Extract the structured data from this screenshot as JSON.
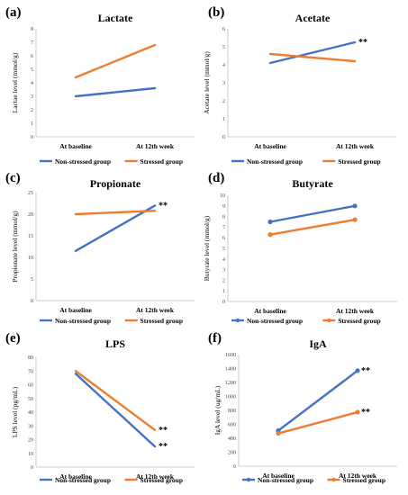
{
  "colors": {
    "non_stressed": "#4472C4",
    "stressed": "#ED7D31"
  },
  "chart_data": [
    {
      "type": "line",
      "panel_label": "(a)",
      "title": "Lactate",
      "ylabel": "Lactae level (mmol/g)",
      "yticks": [
        "0",
        "1",
        "2",
        "3",
        "4",
        "5",
        "6",
        "7",
        "8"
      ],
      "ylim": [
        0,
        8
      ],
      "categories": [
        "At baseline",
        "At 12th week"
      ],
      "markers": false,
      "series": [
        {
          "name": "Non-stressed group",
          "values": [
            3.0,
            3.6
          ],
          "annotation": ""
        },
        {
          "name": "Stressed group",
          "values": [
            4.4,
            6.8
          ],
          "annotation": ""
        }
      ]
    },
    {
      "type": "line",
      "panel_label": "(b)",
      "title": "Acetate",
      "ylabel": "Acetate level (mmol/g)",
      "yticks": [
        "0",
        "1",
        "2",
        "3",
        "4",
        "5",
        "6"
      ],
      "ylim": [
        0,
        6
      ],
      "categories": [
        "At baseline",
        "At 12th week"
      ],
      "markers": false,
      "series": [
        {
          "name": "Non-stressed group",
          "values": [
            4.1,
            5.25
          ],
          "annotation": "**"
        },
        {
          "name": "Stressed group",
          "values": [
            4.6,
            4.2
          ],
          "annotation": ""
        }
      ]
    },
    {
      "type": "line",
      "panel_label": "(c)",
      "title": "Propionate",
      "ylabel": "Propionate level (mmol/g)",
      "yticks": [
        "0",
        "5",
        "10",
        "15",
        "20",
        "25"
      ],
      "ylim": [
        0,
        25
      ],
      "categories": [
        "At baseline",
        "At 12th week"
      ],
      "markers": false,
      "series": [
        {
          "name": "Non-stressed group",
          "values": [
            11.5,
            22.0
          ],
          "annotation": "**"
        },
        {
          "name": "Stressed group",
          "values": [
            20.0,
            20.8
          ],
          "annotation": ""
        }
      ]
    },
    {
      "type": "line",
      "panel_label": "(d)",
      "title": "Butyrate",
      "ylabel": "Butyrate level (mmol/g)",
      "yticks": [
        "0",
        "1",
        "2",
        "3",
        "4",
        "5",
        "6",
        "7",
        "8",
        "9",
        "10"
      ],
      "ylim": [
        0,
        10
      ],
      "categories": [
        "At baseline",
        "At 12th week"
      ],
      "markers": true,
      "series": [
        {
          "name": "Non-stressed group",
          "values": [
            7.5,
            9.0
          ],
          "annotation": ""
        },
        {
          "name": "Stressed group",
          "values": [
            6.3,
            7.7
          ],
          "annotation": ""
        }
      ]
    },
    {
      "type": "line",
      "panel_label": "(e)",
      "title": "LPS",
      "ylabel": "LPS level (pg/mL)",
      "yticks": [
        "0",
        "10",
        "20",
        "30",
        "40",
        "50",
        "60",
        "70",
        "80"
      ],
      "ylim": [
        0,
        80
      ],
      "categories": [
        "At baseline",
        "At 12th week"
      ],
      "markers": false,
      "series": [
        {
          "name": "Non-stressed group",
          "values": [
            68,
            15
          ],
          "annotation": "**"
        },
        {
          "name": "Stressed group",
          "values": [
            70,
            27
          ],
          "annotation": "**"
        }
      ]
    },
    {
      "type": "line",
      "panel_label": "(f)",
      "title": "IgA",
      "ylabel": "IgA level (ug/mL)",
      "yticks": [
        "0",
        "200",
        "400",
        "600",
        "800",
        "1000",
        "1200",
        "1400",
        "1600"
      ],
      "ylim": [
        0,
        1600
      ],
      "categories": [
        "At baseline",
        "At 12th week"
      ],
      "markers": true,
      "series": [
        {
          "name": "Non-stressed group",
          "values": [
            510,
            1370
          ],
          "annotation": "**"
        },
        {
          "name": "Stressed group",
          "values": [
            470,
            775
          ],
          "annotation": "**"
        }
      ]
    }
  ]
}
